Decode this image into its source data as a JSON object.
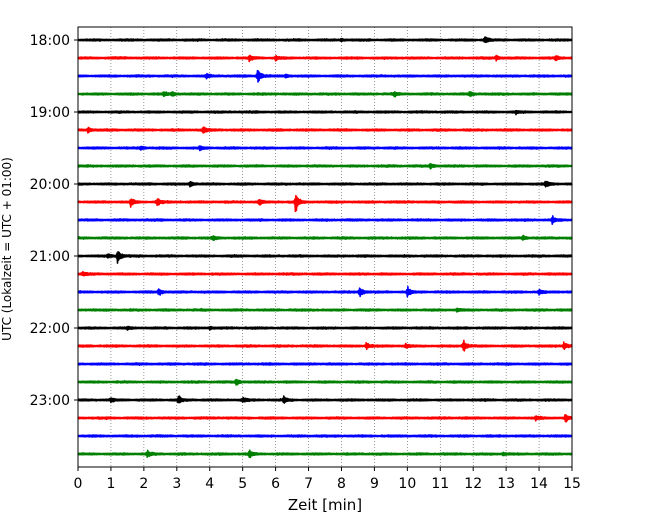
{
  "chart_data": {
    "type": "line",
    "xlabel": "Zeit  [min]",
    "ylabel": "UTC (Lokalzeit = UTC + 01:00)",
    "xlim": [
      0,
      15
    ],
    "x_ticks": [
      0,
      1,
      2,
      3,
      4,
      5,
      6,
      7,
      8,
      9,
      10,
      11,
      12,
      13,
      14,
      15
    ],
    "x_tick_labels": [
      "0",
      "1",
      "2",
      "3",
      "4",
      "5",
      "6",
      "7",
      "8",
      "9",
      "10",
      "11",
      "12",
      "13",
      "14",
      "15"
    ],
    "y_tick_labels": [
      "18:00",
      "19:00",
      "20:00",
      "21:00",
      "22:00",
      "23:00"
    ],
    "y_tick_rows": [
      0,
      4,
      8,
      12,
      16,
      20
    ],
    "grid": "vertical dotted",
    "trace_colors": [
      "#000000",
      "#ff0000",
      "#0000ff",
      "#008000"
    ],
    "traces": [
      {
        "start": "18:00",
        "color": "#000000",
        "events": [
          {
            "t": 12.35,
            "a": 0.5
          },
          {
            "t": 8.0,
            "a": 0.2
          }
        ]
      },
      {
        "start": "18:15",
        "color": "#ff0000",
        "events": [
          {
            "t": 5.2,
            "a": 0.4
          },
          {
            "t": 6.0,
            "a": 0.3
          },
          {
            "t": 12.7,
            "a": 0.3
          },
          {
            "t": 14.5,
            "a": 0.3
          }
        ]
      },
      {
        "start": "18:30",
        "color": "#0000ff",
        "events": [
          {
            "t": 3.9,
            "a": 0.35
          },
          {
            "t": 5.45,
            "a": 1.0
          },
          {
            "t": 6.3,
            "a": 0.25
          }
        ]
      },
      {
        "start": "18:45",
        "color": "#008000",
        "events": [
          {
            "t": 2.6,
            "a": 0.35
          },
          {
            "t": 2.85,
            "a": 0.3
          },
          {
            "t": 9.6,
            "a": 0.3
          },
          {
            "t": 11.9,
            "a": 0.35
          }
        ]
      },
      {
        "start": "19:00",
        "color": "#000000",
        "events": [
          {
            "t": 13.3,
            "a": 0.2
          }
        ]
      },
      {
        "start": "19:15",
        "color": "#ff0000",
        "events": [
          {
            "t": 0.3,
            "a": 0.35
          },
          {
            "t": 3.8,
            "a": 0.5
          }
        ]
      },
      {
        "start": "19:30",
        "color": "#0000ff",
        "events": [
          {
            "t": 1.9,
            "a": 0.3
          },
          {
            "t": 3.7,
            "a": 0.3
          }
        ]
      },
      {
        "start": "19:45",
        "color": "#008000",
        "events": [
          {
            "t": 10.7,
            "a": 0.35
          }
        ]
      },
      {
        "start": "20:00",
        "color": "#000000",
        "events": [
          {
            "t": 3.4,
            "a": 0.45
          },
          {
            "t": 14.2,
            "a": 0.45
          }
        ]
      },
      {
        "start": "20:15",
        "color": "#ff0000",
        "events": [
          {
            "t": 1.6,
            "a": 0.6
          },
          {
            "t": 2.4,
            "a": 0.5
          },
          {
            "t": 5.5,
            "a": 0.35
          },
          {
            "t": 6.6,
            "a": 1.2
          }
        ]
      },
      {
        "start": "20:30",
        "color": "#0000ff",
        "events": [
          {
            "t": 14.4,
            "a": 0.45
          }
        ]
      },
      {
        "start": "20:45",
        "color": "#008000",
        "events": [
          {
            "t": 4.1,
            "a": 0.3
          },
          {
            "t": 13.5,
            "a": 0.35
          }
        ]
      },
      {
        "start": "21:00",
        "color": "#000000",
        "events": [
          {
            "t": 1.2,
            "a": 1.0
          },
          {
            "t": 0.9,
            "a": 0.3
          }
        ]
      },
      {
        "start": "21:15",
        "color": "#ff0000",
        "events": [
          {
            "t": 0.15,
            "a": 0.3
          }
        ]
      },
      {
        "start": "21:30",
        "color": "#0000ff",
        "events": [
          {
            "t": 2.45,
            "a": 0.55
          },
          {
            "t": 8.55,
            "a": 0.75
          },
          {
            "t": 10.0,
            "a": 0.7
          },
          {
            "t": 14.0,
            "a": 0.4
          }
        ]
      },
      {
        "start": "21:45",
        "color": "#008000",
        "events": [
          {
            "t": 11.5,
            "a": 0.3
          }
        ]
      },
      {
        "start": "22:00",
        "color": "#000000",
        "events": [
          {
            "t": 1.5,
            "a": 0.2
          },
          {
            "t": 4.0,
            "a": 0.2
          }
        ]
      },
      {
        "start": "22:15",
        "color": "#ff0000",
        "events": [
          {
            "t": 8.75,
            "a": 0.5
          },
          {
            "t": 9.95,
            "a": 0.3
          },
          {
            "t": 11.7,
            "a": 0.8
          },
          {
            "t": 14.75,
            "a": 0.6
          }
        ]
      },
      {
        "start": "22:30",
        "color": "#0000ff",
        "events": []
      },
      {
        "start": "22:45",
        "color": "#008000",
        "events": [
          {
            "t": 4.8,
            "a": 0.45
          }
        ]
      },
      {
        "start": "23:00",
        "color": "#000000",
        "events": [
          {
            "t": 1.0,
            "a": 0.3
          },
          {
            "t": 3.05,
            "a": 0.55
          },
          {
            "t": 5.0,
            "a": 0.35
          },
          {
            "t": 6.25,
            "a": 0.5
          }
        ]
      },
      {
        "start": "23:15",
        "color": "#ff0000",
        "events": [
          {
            "t": 13.9,
            "a": 0.3
          },
          {
            "t": 14.8,
            "a": 0.5
          }
        ]
      },
      {
        "start": "23:30",
        "color": "#0000ff",
        "events": []
      },
      {
        "start": "23:45",
        "color": "#008000",
        "events": [
          {
            "t": 2.1,
            "a": 0.4
          },
          {
            "t": 5.2,
            "a": 0.6
          },
          {
            "t": 12.9,
            "a": 0.25
          }
        ]
      }
    ]
  }
}
